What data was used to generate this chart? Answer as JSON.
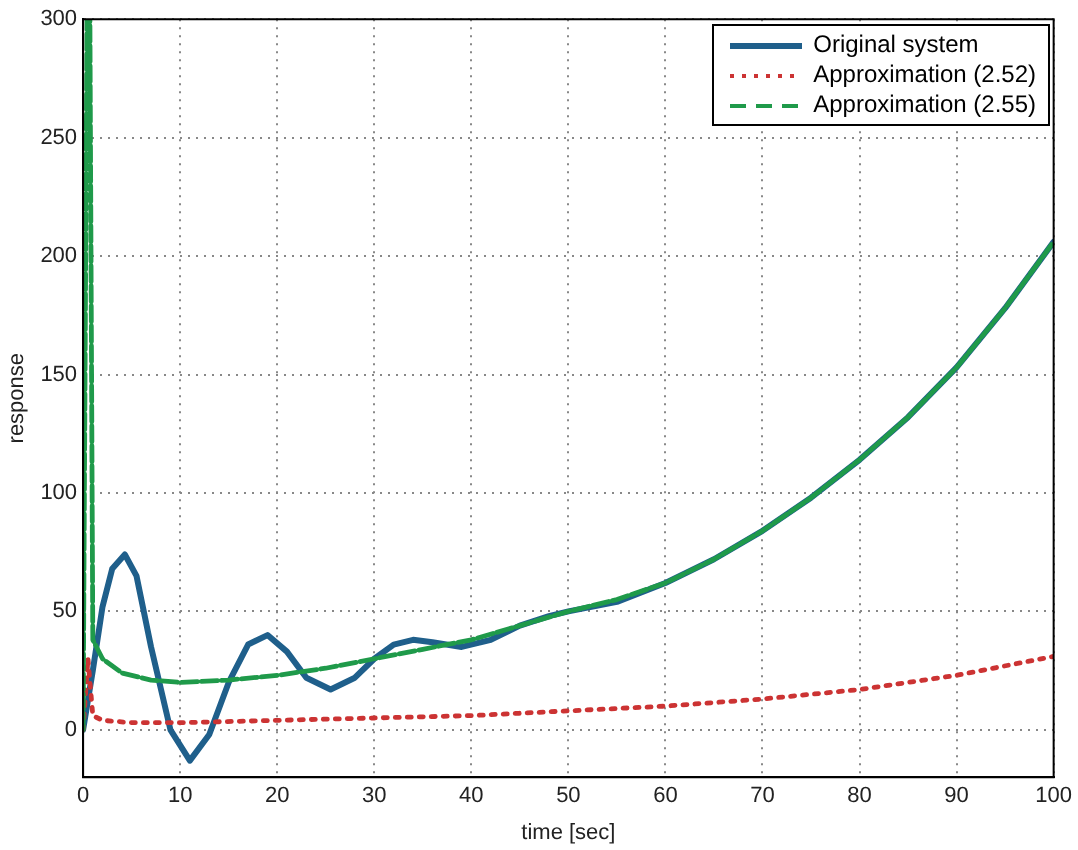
{
  "chart_data": {
    "type": "line",
    "xlabel": "time [sec]",
    "ylabel": "response",
    "xlim": [
      0,
      100
    ],
    "ylim": [
      -20,
      300
    ],
    "xticks": [
      0,
      10,
      20,
      30,
      40,
      50,
      60,
      70,
      80,
      90,
      100
    ],
    "yticks": [
      0,
      50,
      100,
      150,
      200,
      250,
      300
    ],
    "grid": true,
    "legend": "top right",
    "marker": "none",
    "series": [
      {
        "name": "Original system",
        "color": "#1f5f8b",
        "line_style": "solid",
        "x": [
          0,
          1,
          2,
          3,
          4.3,
          5.5,
          7,
          9,
          11,
          13,
          15,
          17,
          19,
          21,
          23,
          25.5,
          28,
          30,
          32,
          34,
          36,
          39,
          42,
          45,
          48,
          50,
          55,
          60,
          65,
          70,
          75,
          80,
          85,
          90,
          95,
          100
        ],
        "values": [
          0,
          25,
          52,
          68,
          74,
          65,
          35,
          0,
          -13,
          -2,
          20,
          36,
          40,
          33,
          22,
          17,
          22,
          30,
          36,
          38,
          37,
          35,
          38,
          44,
          48,
          50,
          54,
          62,
          72,
          84,
          98,
          114,
          132,
          153,
          178,
          206
        ]
      },
      {
        "name": "Approximation (2.52)",
        "color": "#cc3333",
        "line_style": "dotted",
        "x": [
          0,
          0.5,
          1,
          2,
          5,
          10,
          20,
          30,
          40,
          50,
          60,
          70,
          80,
          90,
          100
        ],
        "values": [
          0,
          30,
          6,
          4,
          3,
          3,
          4,
          5,
          6,
          8,
          10,
          13,
          17,
          23,
          31
        ]
      },
      {
        "name": "Approximation (2.55)",
        "color": "#1f9a4a",
        "line_style": "dashed",
        "x": [
          0,
          0.4,
          0.7,
          1,
          2,
          4,
          7,
          10,
          15,
          20,
          25,
          30,
          35,
          40,
          45,
          50,
          55,
          60,
          65,
          70,
          75,
          80,
          85,
          90,
          95,
          100
        ],
        "values": [
          0,
          300,
          300,
          38,
          30,
          24,
          21,
          20,
          21,
          23,
          26,
          30,
          34,
          38,
          44,
          50,
          55,
          62,
          72,
          84,
          98,
          114,
          132,
          153,
          178,
          206
        ]
      }
    ]
  }
}
